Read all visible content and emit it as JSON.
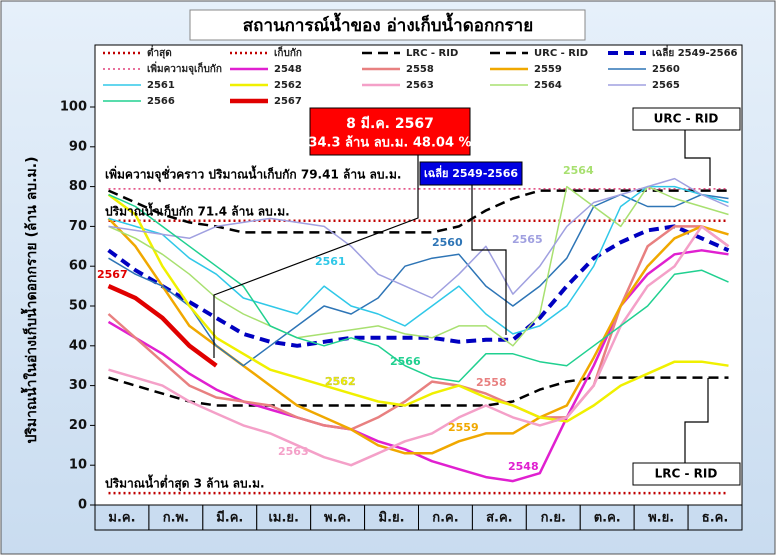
{
  "chart_data": {
    "type": "line",
    "title": "สถานการณ์น้ำของ อ่างเก็บน้ำดอกกราย",
    "y_label": "ปริมาณน้ำในอ่างเก็บน้ำดอกกราย (ล้าน ลบ.ม.)",
    "categories": [
      "ม.ค.",
      null,
      "ก.พ.",
      null,
      "มี.ค.",
      null,
      "เม.ย.",
      null,
      "พ.ค.",
      null,
      "มิ.ย.",
      null,
      "ก.ค.",
      null,
      "ส.ค.",
      null,
      "ก.ย.",
      null,
      "ต.ค.",
      null,
      "พ.ย.",
      null,
      "ธ.ค.",
      null
    ],
    "ylim": [
      0,
      100
    ],
    "yticks": [
      0,
      10,
      20,
      30,
      40,
      50,
      60,
      70,
      80,
      90,
      100
    ],
    "grid": false,
    "series": [
      {
        "name": "ต่ำสุด",
        "color": "#c00000",
        "dash": "dotted",
        "width": 2.5,
        "values": [
          3,
          3,
          3,
          3,
          3,
          3,
          3,
          3,
          3,
          3,
          3,
          3,
          3,
          3,
          3,
          3,
          3,
          3,
          3,
          3,
          3,
          3,
          3,
          3
        ]
      },
      {
        "name": "เก็บกัก",
        "color": "#c00000",
        "dash": "dotted",
        "width": 2.5,
        "values": [
          71.4,
          71.4,
          71.4,
          71.4,
          71.4,
          71.4,
          71.4,
          71.4,
          71.4,
          71.4,
          71.4,
          71.4,
          71.4,
          71.4,
          71.4,
          71.4,
          71.4,
          71.4,
          71.4,
          71.4,
          71.4,
          71.4,
          71.4,
          71.4
        ]
      },
      {
        "name": "LRC - RID",
        "color": "#000000",
        "dash": "dashed",
        "width": 2.5,
        "values": [
          32,
          30,
          28,
          26,
          25,
          25,
          25,
          25,
          25,
          25,
          25,
          25,
          25,
          25,
          25,
          26,
          29,
          31,
          32,
          32,
          32,
          32,
          32,
          32
        ]
      },
      {
        "name": "URC - RID",
        "color": "#000000",
        "dash": "dashed",
        "width": 2.5,
        "values": [
          79,
          76,
          73,
          71,
          70,
          68.5,
          68.5,
          68.5,
          68.5,
          68.5,
          68.5,
          68.5,
          68.5,
          70,
          74,
          77,
          79,
          79,
          79,
          79,
          79,
          79,
          79,
          79
        ]
      },
      {
        "name": "เฉลี่ย 2549-2566",
        "color": "#0000c0",
        "dash": "dashed",
        "width": 4,
        "values": [
          64,
          59,
          55,
          51,
          47,
          43,
          41,
          40,
          41,
          42,
          42,
          42,
          42,
          41,
          41.5,
          41.5,
          47,
          55,
          62,
          66,
          69,
          70,
          67,
          64
        ]
      },
      {
        "name": "เพิ่มความจุเก็บกัก",
        "color": "#e0407a",
        "dash": "dotted",
        "width": 1.5,
        "values": [
          79.41,
          79.41,
          79.41,
          79.41,
          79.41,
          79.41,
          79.41,
          79.41,
          79.41,
          79.41,
          79.41,
          79.41,
          79.41,
          79.41,
          79.41,
          79.41,
          79.41,
          79.41,
          79.41,
          79.41,
          79.41,
          79.41,
          79.41,
          79.41
        ]
      },
      {
        "name": "2548",
        "color": "#e020d0",
        "width": 2.5,
        "values": [
          46,
          42,
          38,
          33,
          29,
          26,
          24,
          22,
          20,
          19,
          16,
          14,
          11,
          9,
          7,
          6,
          8,
          22,
          35,
          50,
          58,
          63,
          64,
          63
        ]
      },
      {
        "name": "2558",
        "color": "#e88080",
        "width": 2.5,
        "values": [
          48,
          42,
          36,
          30,
          27,
          26,
          25,
          22,
          20,
          19,
          22,
          26,
          31,
          30,
          28,
          25,
          22,
          22,
          30,
          50,
          65,
          70,
          70,
          65
        ]
      },
      {
        "name": "2559",
        "color": "#f0a800",
        "width": 2.5,
        "values": [
          72,
          65,
          55,
          45,
          40,
          35,
          30,
          25,
          22,
          19,
          15,
          13,
          13,
          16,
          18,
          18,
          22,
          25,
          37,
          50,
          60,
          67,
          70,
          68
        ]
      },
      {
        "name": "2560",
        "color": "#2e75b6",
        "width": 1.5,
        "values": [
          62,
          58,
          55,
          50,
          40,
          35,
          40,
          45,
          50,
          48,
          52,
          60,
          62,
          63,
          55,
          50,
          55,
          62,
          75,
          78,
          75,
          75,
          78,
          77
        ]
      },
      {
        "name": "2561",
        "color": "#30c8e8",
        "width": 1.5,
        "values": [
          72,
          70,
          68,
          62,
          58,
          52,
          50,
          48,
          55,
          50,
          48,
          45,
          50,
          55,
          48,
          43,
          45,
          50,
          60,
          75,
          80,
          80,
          78,
          76
        ]
      },
      {
        "name": "2562",
        "color": "#f0f000",
        "width": 2.5,
        "values": [
          78,
          73,
          60,
          50,
          42,
          38,
          34,
          32,
          30,
          28,
          26,
          25,
          28,
          30,
          27,
          25,
          22,
          21,
          25,
          30,
          33,
          36,
          36,
          35
        ]
      },
      {
        "name": "2563",
        "color": "#f4a0c8",
        "width": 2.5,
        "values": [
          34,
          32,
          30,
          26,
          23,
          20,
          18,
          15,
          12,
          10,
          13,
          16,
          18,
          22,
          25,
          22,
          20,
          22,
          30,
          45,
          55,
          60,
          70,
          65
        ]
      },
      {
        "name": "2564",
        "color": "#a8e070",
        "width": 1.5,
        "values": [
          70,
          67,
          63,
          58,
          52,
          48,
          45,
          42,
          43,
          44,
          45,
          43,
          42,
          45,
          45,
          40,
          48,
          80,
          75,
          70,
          80,
          77,
          75,
          73
        ]
      },
      {
        "name": "2565",
        "color": "#a0a0e0",
        "width": 1.5,
        "values": [
          70,
          69,
          68,
          67,
          70,
          71,
          72,
          71,
          70,
          65,
          58,
          55,
          52,
          58,
          65,
          53,
          60,
          70,
          76,
          78,
          80,
          82,
          78,
          75
        ]
      },
      {
        "name": "2566",
        "color": "#20d090",
        "width": 1.5,
        "values": [
          78,
          75,
          70,
          65,
          60,
          55,
          45,
          42,
          40,
          42,
          40,
          35,
          32,
          31,
          38,
          38,
          36,
          35,
          40,
          45,
          50,
          58,
          59,
          56
        ]
      },
      {
        "name": "2567",
        "color": "#e00000",
        "width": 4.5,
        "values": [
          55,
          52,
          47,
          40,
          35,
          null,
          null,
          null,
          null,
          null,
          null,
          null,
          null,
          null,
          null,
          null,
          null,
          null,
          null,
          null,
          null,
          null,
          null,
          null
        ]
      }
    ],
    "annotations": [
      "8 มี.ค. 2567",
      "34.3 ล้าน ลบ.ม. 48.04 %",
      "เฉลี่ย 2549-2566",
      "URC - RID",
      "LRC - RID",
      "เพิ่มความจุชั่วคราว ปริมาณน้ำเก็บกัก 79.41 ล้าน ลบ.ม.",
      "ปริมาณน้ำเก็บกัก 71.4 ล้าน ลบ.ม.",
      "ปริมาณน้ำต่ำสุด 3 ล้าน ลบ.ม."
    ]
  }
}
